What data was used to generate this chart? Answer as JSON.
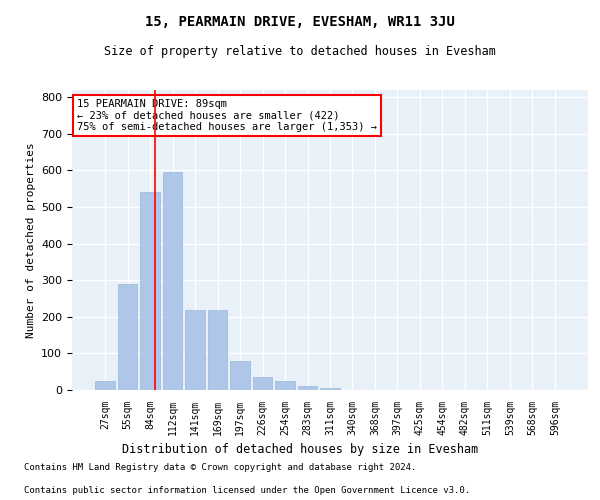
{
  "title1": "15, PEARMAIN DRIVE, EVESHAM, WR11 3JU",
  "title2": "Size of property relative to detached houses in Evesham",
  "xlabel": "Distribution of detached houses by size in Evesham",
  "ylabel": "Number of detached properties",
  "footnote1": "Contains HM Land Registry data © Crown copyright and database right 2024.",
  "footnote2": "Contains public sector information licensed under the Open Government Licence v3.0.",
  "bar_labels": [
    "27sqm",
    "55sqm",
    "84sqm",
    "112sqm",
    "141sqm",
    "169sqm",
    "197sqm",
    "226sqm",
    "254sqm",
    "283sqm",
    "311sqm",
    "340sqm",
    "368sqm",
    "397sqm",
    "425sqm",
    "454sqm",
    "482sqm",
    "511sqm",
    "539sqm",
    "568sqm",
    "596sqm"
  ],
  "bar_values": [
    25,
    290,
    540,
    595,
    220,
    220,
    78,
    35,
    25,
    10,
    5,
    0,
    0,
    0,
    0,
    0,
    0,
    0,
    0,
    0,
    0
  ],
  "bar_color": "#aec6e8",
  "bar_edge_color": "#9ab8d8",
  "background_color": "#e8f0f8",
  "grid_color": "#ffffff",
  "ylim": [
    0,
    820
  ],
  "yticks": [
    0,
    100,
    200,
    300,
    400,
    500,
    600,
    700,
    800
  ],
  "annotation_text": "15 PEARMAIN DRIVE: 89sqm\n← 23% of detached houses are smaller (422)\n75% of semi-detached houses are larger (1,353) →",
  "vline_x": 2.2,
  "fig_width": 6.0,
  "fig_height": 5.0,
  "title1_fontsize": 10,
  "title2_fontsize": 8.5
}
